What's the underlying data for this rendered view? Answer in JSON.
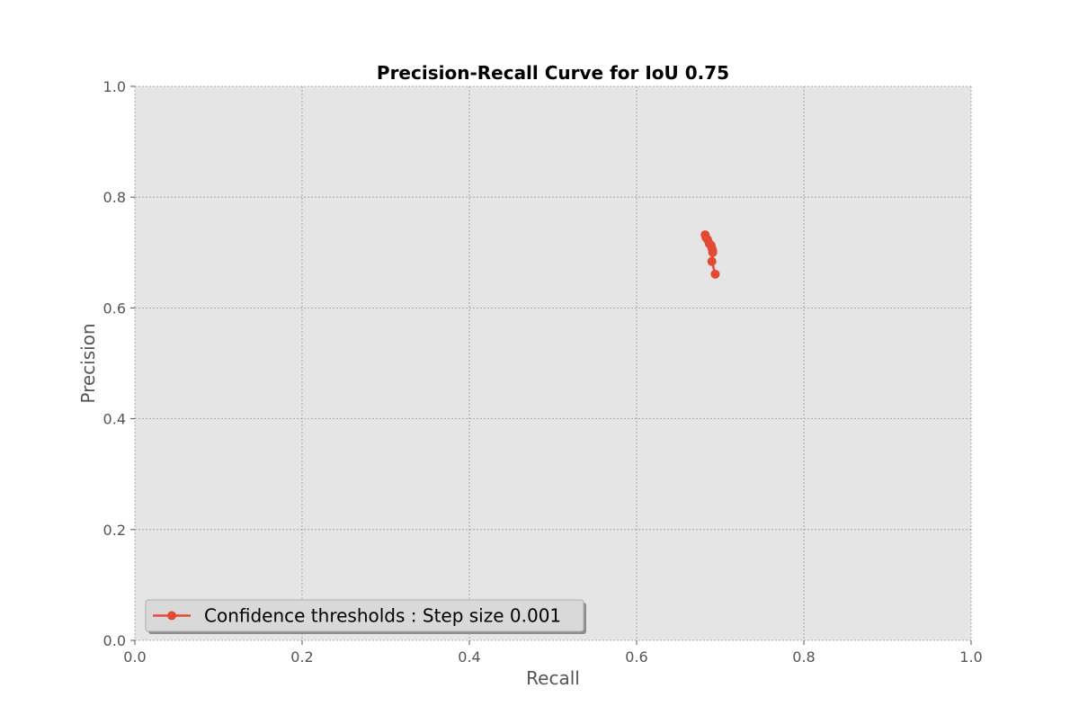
{
  "chart_data": {
    "type": "line",
    "title": "Precision-Recall Curve for IoU 0.75",
    "xlabel": "Recall",
    "ylabel": "Precision",
    "xlim": [
      0.0,
      1.0
    ],
    "ylim": [
      0.0,
      1.0
    ],
    "xticks": [
      "0.0",
      "0.2",
      "0.4",
      "0.6",
      "0.8",
      "1.0"
    ],
    "yticks": [
      "0.0",
      "0.2",
      "0.4",
      "0.6",
      "0.8",
      "1.0"
    ],
    "grid": true,
    "legend_position": "lower-left",
    "series": [
      {
        "name": "Confidence thresholds : Step size 0.001",
        "color": "#e24a33",
        "marker": "circle",
        "x": [
          0.682,
          0.683,
          0.685,
          0.687,
          0.689,
          0.69,
          0.691,
          0.691,
          0.69,
          0.694
        ],
        "y": [
          0.732,
          0.727,
          0.723,
          0.716,
          0.713,
          0.708,
          0.703,
          0.7,
          0.684,
          0.661
        ]
      }
    ]
  }
}
